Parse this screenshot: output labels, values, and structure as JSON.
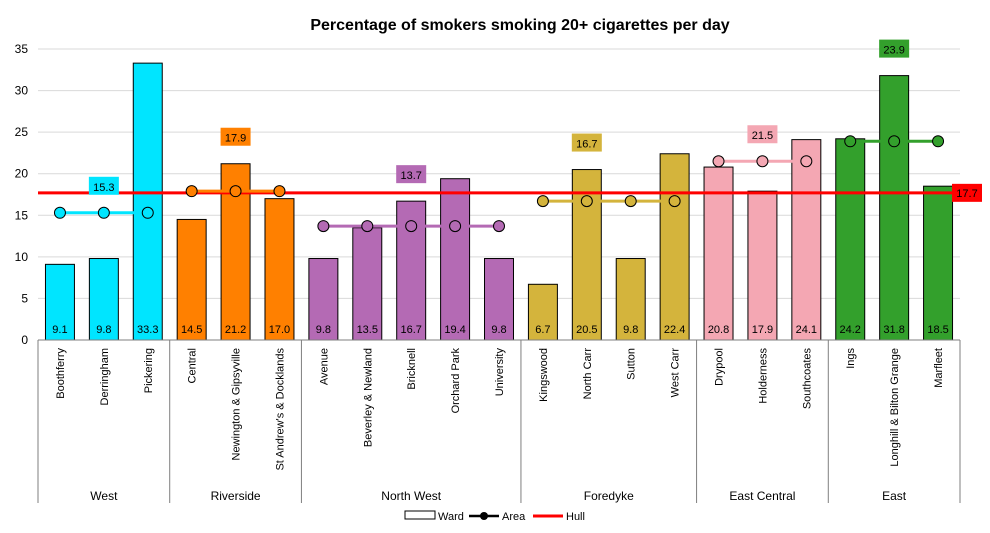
{
  "chart_data": {
    "type": "bar",
    "title": "Percentage of smokers smoking 20+ cigarettes per day",
    "xlabel": "",
    "ylabel": "",
    "ylim": [
      0,
      35
    ],
    "yticks": [
      0,
      5,
      10,
      15,
      20,
      25,
      30,
      35
    ],
    "grid": true,
    "legend_position": "bottom",
    "legend": [
      {
        "name": "Ward",
        "kind": "bar"
      },
      {
        "name": "Area",
        "kind": "line-marker"
      },
      {
        "name": "Hull",
        "kind": "line"
      }
    ],
    "hull": {
      "name": "Hull",
      "value": 17.7,
      "label": "17.7",
      "color": "#ff0000"
    },
    "groups": [
      {
        "name": "West",
        "color": "#00e5ff",
        "area_value": 15.3,
        "area_label": "15.3",
        "wards": [
          {
            "name": "Boothferry",
            "value": 9.1,
            "label": "9.1"
          },
          {
            "name": "Derringham",
            "value": 9.8,
            "label": "9.8"
          },
          {
            "name": "Pickering",
            "value": 33.3,
            "label": "33.3"
          }
        ]
      },
      {
        "name": "Riverside",
        "color": "#ff8000",
        "area_value": 17.9,
        "area_label": "17.9",
        "wards": [
          {
            "name": "Central",
            "value": 14.5,
            "label": "14.5"
          },
          {
            "name": "Newington & Gipsyville",
            "value": 21.2,
            "label": "21.2"
          },
          {
            "name": "St Andrew's & Docklands",
            "value": 17.0,
            "label": "17.0"
          }
        ]
      },
      {
        "name": "North West",
        "color": "#b46ab4",
        "area_value": 13.7,
        "area_label": "13.7",
        "wards": [
          {
            "name": "Avenue",
            "value": 9.8,
            "label": "9.8"
          },
          {
            "name": "Beverley & Newland",
            "value": 13.5,
            "label": "13.5"
          },
          {
            "name": "Bricknell",
            "value": 16.7,
            "label": "16.7"
          },
          {
            "name": "Orchard Park",
            "value": 19.4,
            "label": "19.4"
          },
          {
            "name": "University",
            "value": 9.8,
            "label": "9.8"
          }
        ]
      },
      {
        "name": "Foredyke",
        "color": "#d4b43c",
        "area_value": 16.7,
        "area_label": "16.7",
        "wards": [
          {
            "name": "Kingswood",
            "value": 6.7,
            "label": "6.7"
          },
          {
            "name": "North Carr",
            "value": 20.5,
            "label": "20.5"
          },
          {
            "name": "Sutton",
            "value": 9.8,
            "label": "9.8"
          },
          {
            "name": "West Carr",
            "value": 22.4,
            "label": "22.4"
          }
        ]
      },
      {
        "name": "East Central",
        "color": "#f4a7b3",
        "area_value": 21.5,
        "area_label": "21.5",
        "wards": [
          {
            "name": "Drypool",
            "value": 20.8,
            "label": "20.8"
          },
          {
            "name": "Holderness",
            "value": 17.9,
            "label": "17.9"
          },
          {
            "name": "Southcoates",
            "value": 24.1,
            "label": "24.1"
          }
        ]
      },
      {
        "name": "East",
        "color": "#33a02c",
        "area_value": 23.9,
        "area_label": "23.9",
        "wards": [
          {
            "name": "Ings",
            "value": 24.2,
            "label": "24.2"
          },
          {
            "name": "Longhill & Bilton Grange",
            "value": 31.8,
            "label": "31.8"
          },
          {
            "name": "Marfleet",
            "value": 18.5,
            "label": "18.5"
          }
        ]
      }
    ]
  }
}
